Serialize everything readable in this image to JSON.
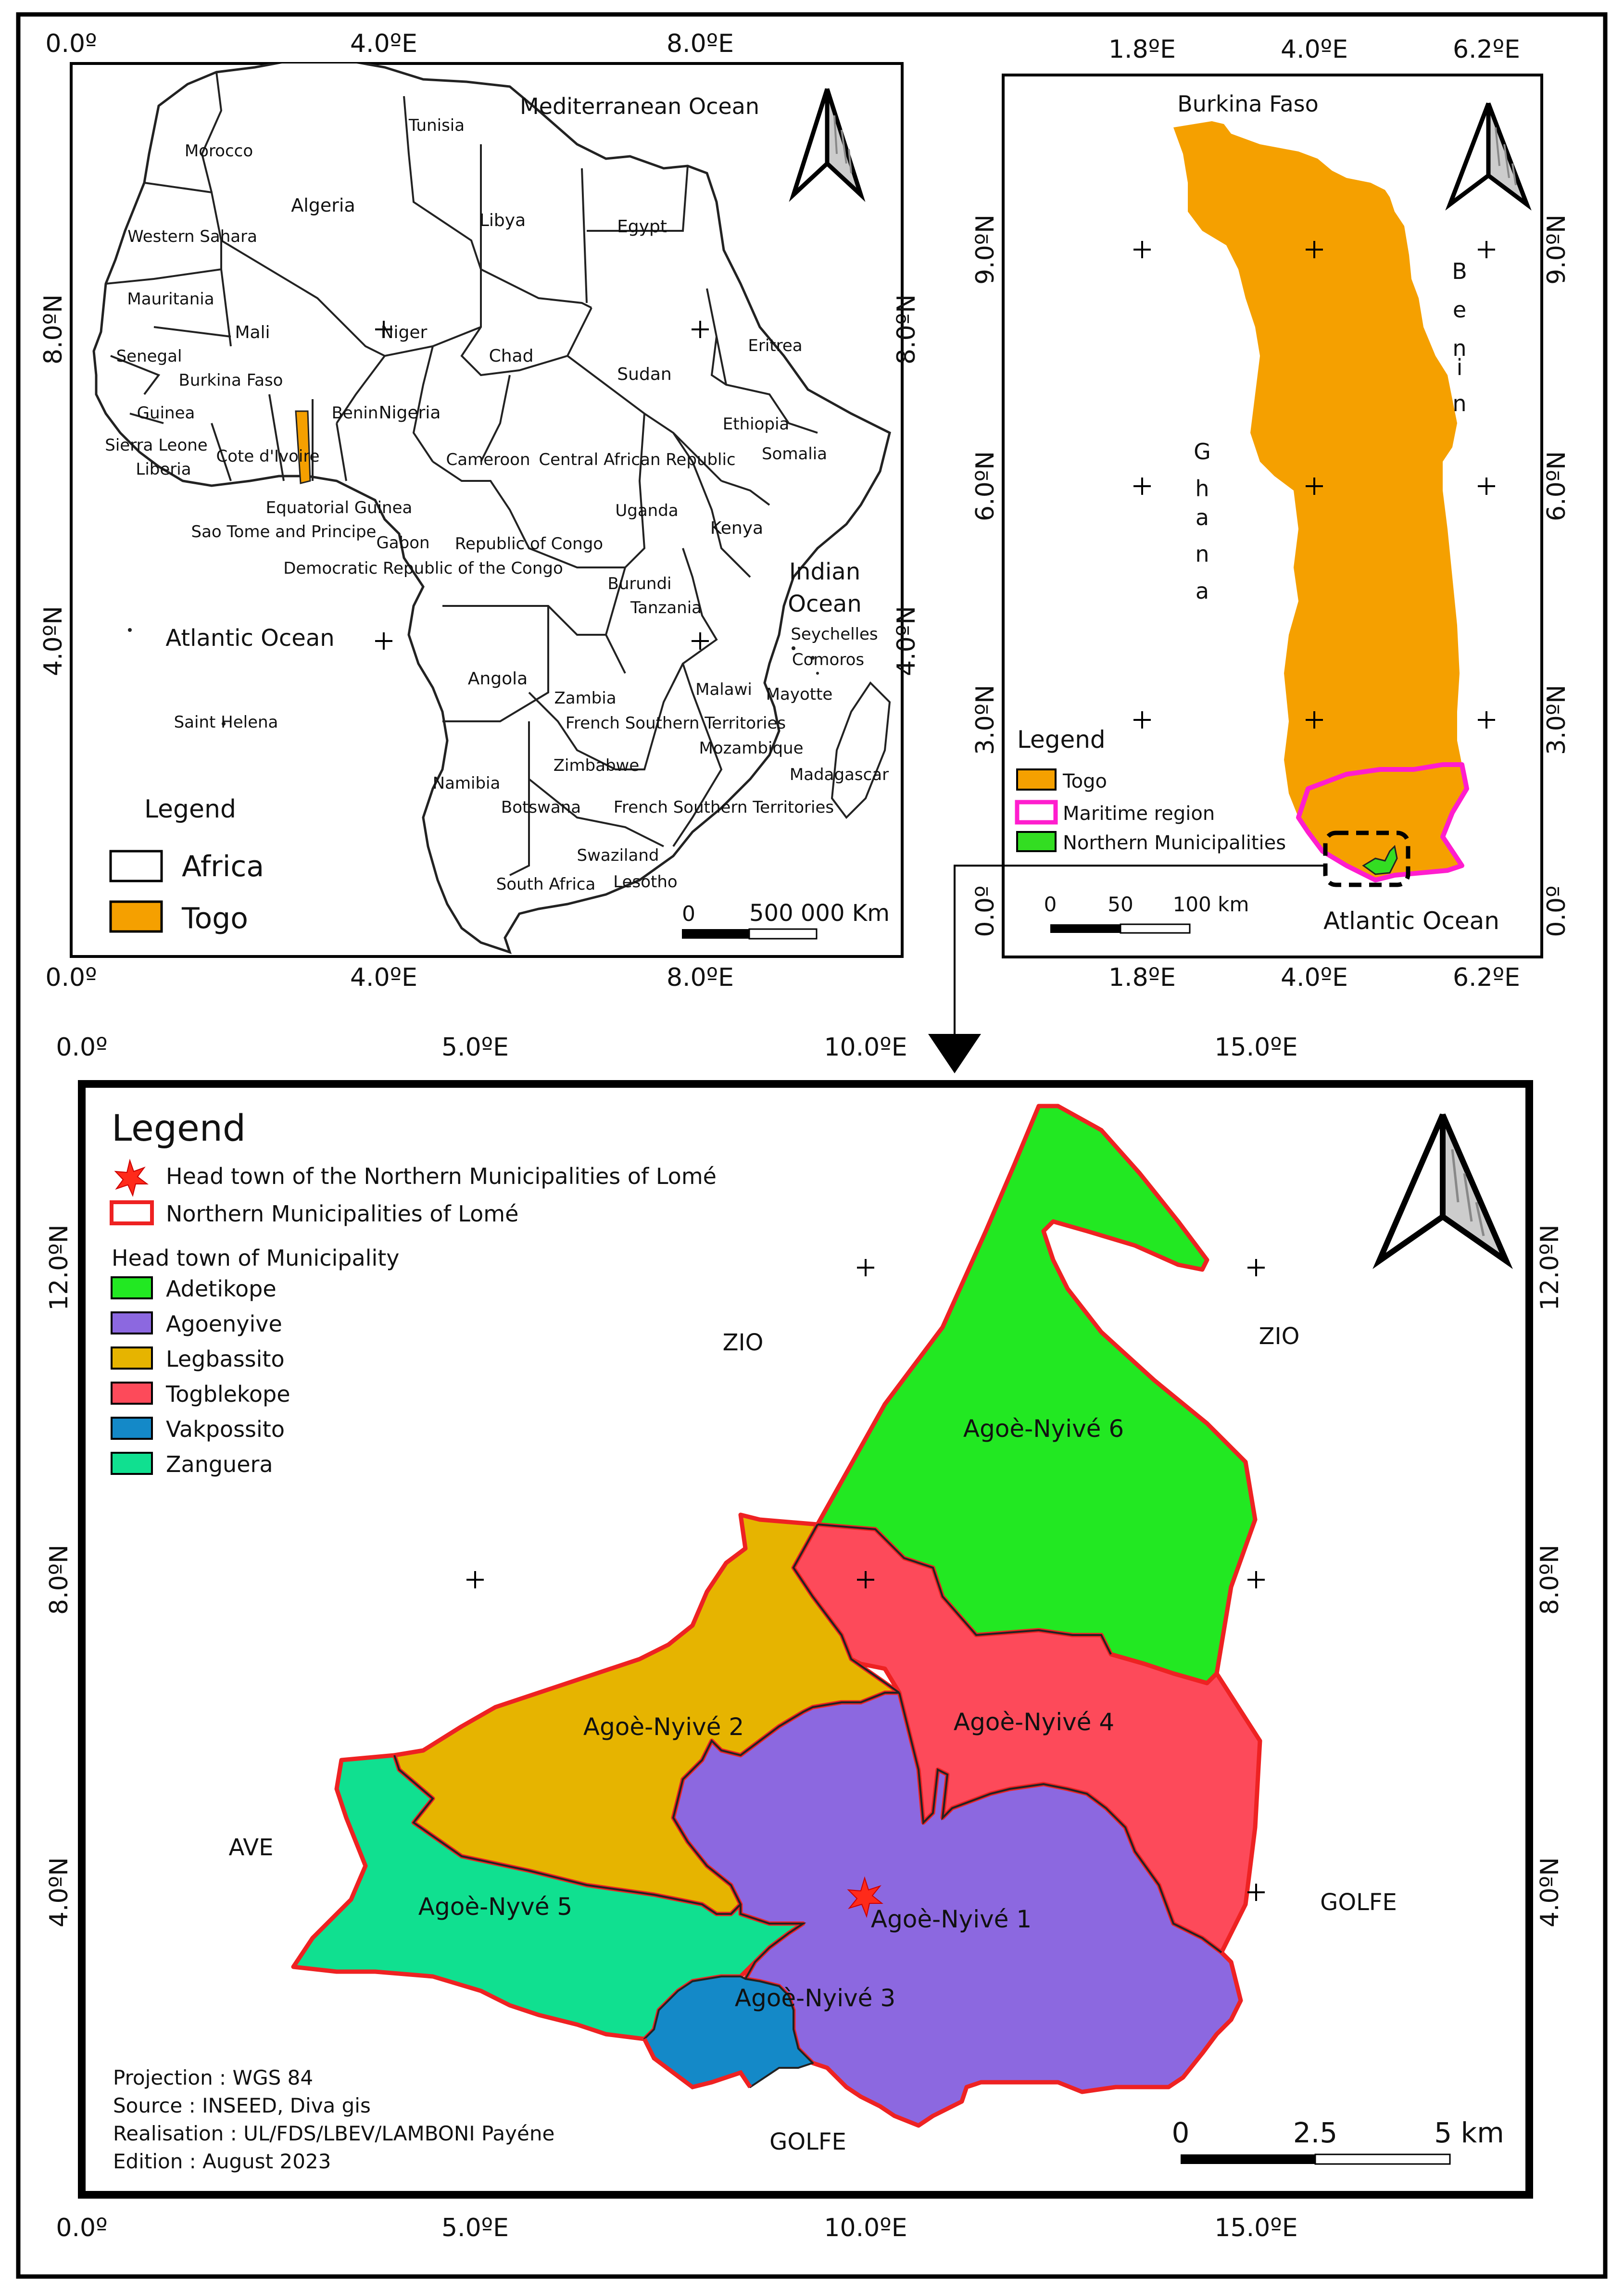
{
  "africa_map": {
    "top_ticks": [
      "0.0º",
      "4.0ºE",
      "8.0ºE"
    ],
    "bottom_ticks": [
      "0.0º",
      "4.0ºE",
      "8.0ºE"
    ],
    "left_ticks": [
      "8.0ºN",
      "4.0ºN"
    ],
    "right_ticks": [
      "8.0ºN",
      "4.0ºN"
    ],
    "labels": {
      "mediterranean": "Mediterranean Ocean",
      "morocco": "Morocco",
      "tunisia": "Tunisia",
      "algeria": "Algeria",
      "libya": "Libya",
      "egypt": "Egypt",
      "western_sahara": "Western Sahara",
      "mauritania": "Mauritania",
      "mali": "Mali",
      "niger": "Niger",
      "chad": "Chad",
      "sudan": "Sudan",
      "eritrea": "Eritrea",
      "senegal": "Senegal",
      "burkina_faso": "Burkina Faso",
      "guinea": "Guinea",
      "sierra_leone": "Sierra Leone",
      "liberia": "Liberia",
      "cote_divoire": "Cote d'Ivoire",
      "benin": "Benin",
      "nigeria": "Nigeria",
      "ethiopia": "Ethiopia",
      "somalia": "Somalia",
      "cameroon": "Cameroon",
      "car": "Central African Republic",
      "eq_guinea": "Equatorial Guinea",
      "uganda": "Uganda",
      "kenya": "Kenya",
      "sao_tome": "Sao Tome and Principe",
      "gabon": "Gabon",
      "rep_congo": "Republic of Congo",
      "drc": "Democratic Republic of the Congo",
      "burundi": "Burundi",
      "tanzania": "Tanzania",
      "indian_ocean_1": "Indian",
      "indian_ocean_2": "Ocean",
      "seychelles": "Seychelles",
      "comoros": "Comoros",
      "atlantic": "Atlantic Ocean",
      "angola": "Angola",
      "zambia": "Zambia",
      "malawi": "Malawi",
      "mayotte": "Mayotte",
      "french_southern_1": "French Southern Territories",
      "mozambique": "Mozambique",
      "saint_helena": "Saint Helena",
      "zimbabwe": "Zimbabwe",
      "madagascar": "Madagascar",
      "namibia": "Namibia",
      "botswana": "Botswana",
      "french_southern_2": "French Southern Territories",
      "swaziland": "Swaziland",
      "south_africa": "South Africa",
      "lesotho": "Lesotho"
    },
    "legend": {
      "title": "Legend",
      "items": [
        {
          "label": "Africa",
          "color": "#ffffff"
        },
        {
          "label": "Togo",
          "color": "#f5a000"
        }
      ]
    },
    "scale": {
      "zero": "0",
      "label": "500 000 Km"
    }
  },
  "togo_map": {
    "top_ticks": [
      "1.8ºE",
      "4.0ºE",
      "6.2ºE"
    ],
    "bottom_ticks": [
      "1.8ºE",
      "4.0ºE",
      "6.2ºE"
    ],
    "left_ticks": [
      "9.0ºN",
      "6.0ºN",
      "3.0ºN",
      "0.0º"
    ],
    "right_ticks": [
      "9.0ºN",
      "6.0ºN",
      "3.0ºN",
      "0.0º"
    ],
    "labels": {
      "burkina": "Burkina Faso",
      "benin_letters": [
        "B",
        "e",
        "n",
        "i",
        "n"
      ],
      "ghana_letters": [
        "G",
        "h",
        "a",
        "n",
        "a"
      ],
      "atlantic": "Atlantic Ocean"
    },
    "legend": {
      "title": "Legend",
      "items": [
        {
          "label": "Togo",
          "color": "#f5a000"
        },
        {
          "label": "Maritime region",
          "color": "#ff1dce"
        },
        {
          "label": "Northern Municipalities",
          "color": "#33dd22"
        }
      ]
    },
    "scale": {
      "ticks": [
        "0",
        "50",
        "100 km"
      ]
    }
  },
  "main_map": {
    "top_ticks": [
      "0.0º",
      "5.0ºE",
      "10.0ºE",
      "15.0ºE"
    ],
    "bottom_ticks": [
      "0.0º",
      "5.0ºE",
      "10.0ºE",
      "15.0ºE"
    ],
    "left_ticks": [
      "12.0ºN",
      "8.0ºN",
      "4.0ºN"
    ],
    "right_ticks": [
      "12.0ºN",
      "8.0ºN",
      "4.0ºN"
    ],
    "legend": {
      "title": "Legend",
      "headtown_label": "Head town of the Northern Municipalities of Lomé",
      "boundary_label": "Northern Municipalities of Lomé",
      "subtitle": "Head town of Municipality",
      "items": [
        {
          "label": "Adetikope",
          "color": "#22e822"
        },
        {
          "label": "Agoenyive",
          "color": "#8c68e0"
        },
        {
          "label": "Legbassito",
          "color": "#e6b400"
        },
        {
          "label": "Togblekope",
          "color": "#fd4a5a"
        },
        {
          "label": "Vakpossito",
          "color": "#1489c8"
        },
        {
          "label": "Zanguera",
          "color": "#10e090"
        }
      ]
    },
    "districts": {
      "n6": "Agoè-Nyivé 6",
      "n2": "Agoè-Nyivé 2",
      "n4": "Agoè-Nyivé 4",
      "n5": "Agoè-Nyvé 5",
      "n1": "Agoè-Nyivé 1",
      "n3": "Agoè-Nyivé 3"
    },
    "neighbors": {
      "zio_left": "ZIO",
      "zio_right": "ZIO",
      "ave": "AVE",
      "golfe_right": "GOLFE",
      "golfe_bottom": "GOLFE"
    },
    "info": {
      "projection": "Projection : WGS 84",
      "source": "Source : INSEED, Diva gis",
      "realisation": "Realisation : UL/FDS/LBEV/LAMBONI Payéne",
      "edition": "Edition : August 2023"
    },
    "scale": {
      "ticks": [
        "0",
        "2.5",
        "5 km"
      ]
    }
  },
  "colors": {
    "togo": "#f5a000",
    "maritime": "#ff1dce",
    "northern": "#33dd22",
    "boundary": "#ee2222"
  }
}
